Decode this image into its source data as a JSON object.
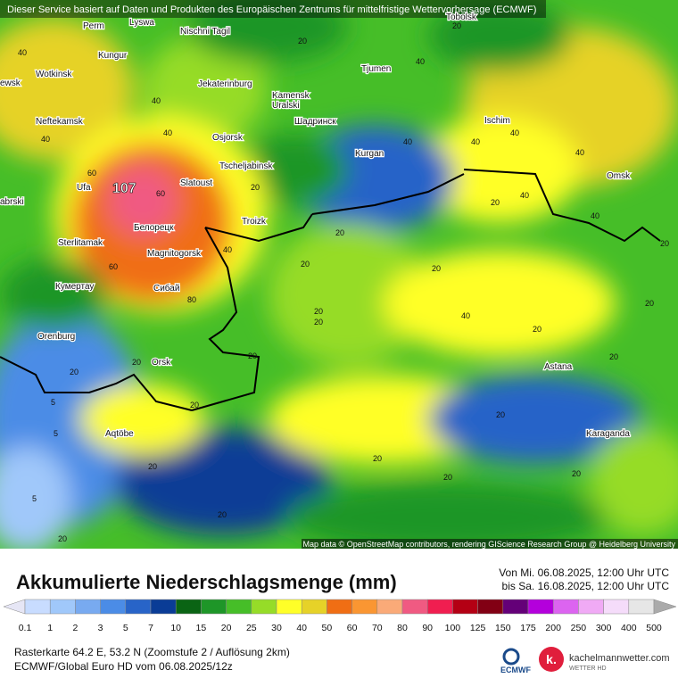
{
  "header": {
    "notice": "Dieser Service basiert auf Daten und Produkten des Europäischen Zentrums für mittelfristige Wettervorhersage (ECMWF)"
  },
  "map": {
    "peak_label": "107",
    "cities": [
      "Perm",
      "Lyswa",
      "Nischni Tagil",
      "Tobolsk",
      "Kungur",
      "Wotkinsk",
      "ewsk",
      "Tjumen",
      "Jekaterinburg",
      "Kamensk",
      "Uralski",
      "Шадринск",
      "Neftekamsk",
      "Ischim",
      "Osjorsk",
      "Kurgan",
      "Tscheljabinsk",
      "Omsk",
      "Ufa",
      "Slatoust",
      "abrski",
      "Белорецк",
      "Troizk",
      "Sterlitamak",
      "Magnitogorsk",
      "Кумертау",
      "Сибай",
      "Orenburg",
      "Orsk",
      "Astana",
      "Aqtöbe",
      "Karaganda"
    ],
    "contour_labels": [
      "40",
      "40",
      "40",
      "40",
      "60",
      "60",
      "40",
      "60",
      "80",
      "20",
      "20",
      "20",
      "20",
      "20",
      "20",
      "20",
      "20",
      "20",
      "20",
      "5",
      "5",
      "20",
      "20",
      "20",
      "5",
      "20",
      "20",
      "40",
      "40",
      "40",
      "40",
      "40",
      "40",
      "40",
      "20",
      "40",
      "20",
      "20",
      "20",
      "20",
      "20",
      "20",
      "20",
      "20"
    ],
    "attribution": "Map data © OpenStreetMap contributors, rendering GIScience Research Group @ Heidelberg University"
  },
  "footer": {
    "title": "Akkumulierte Niederschlagsmenge (mm)",
    "valid_from": "Von Mi. 06.08.2025, 12:00 Uhr UTC",
    "valid_to": "bis Sa. 16.08.2025, 12:00 Uhr UTC",
    "legend": {
      "labels": [
        "0.1",
        "1",
        "2",
        "3",
        "5",
        "7",
        "10",
        "15",
        "20",
        "25",
        "30",
        "40",
        "50",
        "60",
        "70",
        "80",
        "90",
        "100",
        "125",
        "150",
        "175",
        "200",
        "250",
        "300",
        "400",
        "500"
      ],
      "colors": [
        "#e6e6f5",
        "#c8dcff",
        "#a0c8fa",
        "#78aaf0",
        "#4b8ce6",
        "#2864c8",
        "#0a3c96",
        "#0a6414",
        "#1e9628",
        "#46be28",
        "#96dc28",
        "#ffff28",
        "#e6d228",
        "#f06e14",
        "#fa9632",
        "#faaa78",
        "#f05a82",
        "#f01e50",
        "#b40014",
        "#820014",
        "#640078",
        "#b400dc",
        "#dc64f0",
        "#f0aaf5",
        "#f5dcfa",
        "#e6e6e6",
        "#aaaaaa"
      ]
    },
    "grid_info": "Rasterkarte 64.2 E, 53.2 N (Zoomstufe 2 / Auflösung 2km)",
    "model_info": "ECMWF/Global Euro HD vom 06.08.2025/12z",
    "logo_ecmwf": "ECMWF",
    "logo_site": "kachelmannwetter.com",
    "logo_sub": "WETTER HD"
  }
}
